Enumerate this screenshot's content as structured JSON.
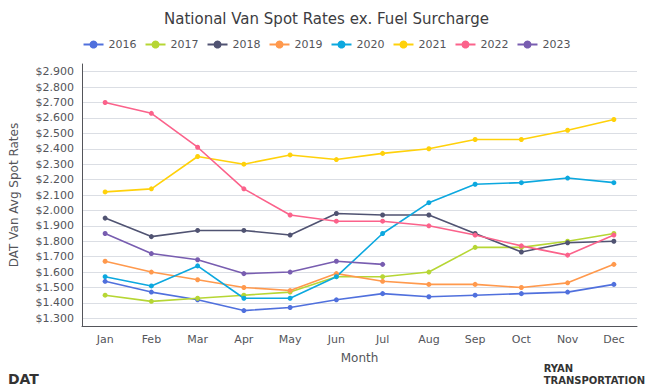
{
  "chart_data": {
    "type": "line",
    "title": "National Van Spot Rates ex. Fuel Surcharge",
    "x_label": "Month",
    "y_label": "DAT Van Avg Spot Rates",
    "categories": [
      "Jan",
      "Feb",
      "Mar",
      "Apr",
      "May",
      "Jun",
      "Jul",
      "Aug",
      "Sep",
      "Oct",
      "Nov",
      "Dec"
    ],
    "series": [
      {
        "name": "2016",
        "marker": "circle",
        "values": [
          1.54,
          1.47,
          1.42,
          1.35,
          1.37,
          1.42,
          1.46,
          1.44,
          1.45,
          1.46,
          1.47,
          1.52
        ]
      },
      {
        "name": "2017",
        "marker": "circle",
        "values": [
          1.45,
          1.41,
          1.43,
          1.45,
          1.47,
          1.57,
          1.57,
          1.6,
          1.76,
          1.76,
          1.8,
          1.85
        ]
      },
      {
        "name": "2018",
        "marker": "circle",
        "values": [
          1.95,
          1.83,
          1.87,
          1.87,
          1.84,
          1.98,
          1.97,
          1.97,
          1.85,
          1.73,
          1.79,
          1.8
        ]
      },
      {
        "name": "2019",
        "marker": "circle",
        "values": [
          1.67,
          1.6,
          1.55,
          1.5,
          1.48,
          1.59,
          1.54,
          1.52,
          1.52,
          1.5,
          1.53,
          1.65
        ]
      },
      {
        "name": "2020",
        "marker": "circle",
        "values": [
          1.57,
          1.51,
          1.64,
          1.43,
          1.43,
          1.57,
          1.85,
          2.05,
          2.17,
          2.18,
          2.21,
          2.18
        ]
      },
      {
        "name": "2021",
        "marker": "circle",
        "values": [
          2.12,
          2.14,
          2.35,
          2.3,
          2.36,
          2.33,
          2.37,
          2.4,
          2.46,
          2.46,
          2.52,
          2.59
        ]
      },
      {
        "name": "2022",
        "marker": "circle",
        "values": [
          2.7,
          2.63,
          2.41,
          2.14,
          1.97,
          1.93,
          1.93,
          1.9,
          1.84,
          1.77,
          1.71,
          1.84
        ]
      },
      {
        "name": "2023",
        "marker": "circle",
        "values": [
          1.85,
          1.72,
          1.68,
          1.59,
          1.6,
          1.67,
          1.65,
          null,
          null,
          null,
          null,
          null
        ]
      }
    ],
    "ylim": [
      1.25,
      2.95
    ],
    "yticks": [
      {
        "value": 1.3,
        "label": "$1.300"
      },
      {
        "value": 1.4,
        "label": "$1.400"
      },
      {
        "value": 1.5,
        "label": "$1.500"
      },
      {
        "value": 1.6,
        "label": "$1.600"
      },
      {
        "value": 1.7,
        "label": "$1.700"
      },
      {
        "value": 1.8,
        "label": "$1.800"
      },
      {
        "value": 1.9,
        "label": "$1.900"
      },
      {
        "value": 2.0,
        "label": "$2.000"
      },
      {
        "value": 2.1,
        "label": "$2.100"
      },
      {
        "value": 2.2,
        "label": "$2.200"
      },
      {
        "value": 2.3,
        "label": "$2.300"
      },
      {
        "value": 2.4,
        "label": "$2.400"
      },
      {
        "value": 2.5,
        "label": "$2.500"
      },
      {
        "value": 2.6,
        "label": "$2.600"
      },
      {
        "value": 2.7,
        "label": "$2.700"
      },
      {
        "value": 2.8,
        "label": "$2.800"
      },
      {
        "value": 2.9,
        "label": "$2.900"
      }
    ],
    "grid": true,
    "legend": "top",
    "annotations": [
      "DAT",
      "RYAN\nTRANSPORTATION"
    ]
  }
}
